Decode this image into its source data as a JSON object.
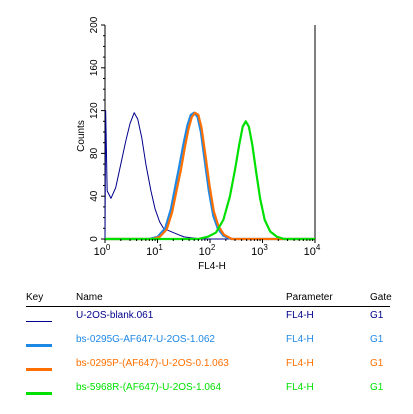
{
  "chart_data": {
    "type": "line",
    "title": "",
    "xlabel": "FL4-H",
    "ylabel": "Counts",
    "x_scale": "log",
    "xlim": [
      1,
      10000
    ],
    "ylim": [
      0,
      200
    ],
    "x_ticks": [
      {
        "value": 1,
        "base": "10",
        "exp": "0"
      },
      {
        "value": 10,
        "base": "10",
        "exp": "1"
      },
      {
        "value": 100,
        "base": "10",
        "exp": "2"
      },
      {
        "value": 1000,
        "base": "10",
        "exp": "3"
      },
      {
        "value": 10000,
        "base": "10",
        "exp": "4"
      }
    ],
    "y_ticks": [
      "0",
      "40",
      "80",
      "120",
      "160",
      "200"
    ],
    "grid": false,
    "series": [
      {
        "name": "U-2OS-blank.061",
        "color": "#00008b",
        "points": [
          [
            1,
            0
          ],
          [
            1.03,
            120
          ],
          [
            1.1,
            45
          ],
          [
            1.3,
            38
          ],
          [
            1.6,
            48
          ],
          [
            2.0,
            70
          ],
          [
            2.5,
            92
          ],
          [
            3.0,
            108
          ],
          [
            3.6,
            118
          ],
          [
            4.2,
            112
          ],
          [
            5.0,
            95
          ],
          [
            6.0,
            70
          ],
          [
            7.5,
            45
          ],
          [
            9.0,
            28
          ],
          [
            11,
            16
          ],
          [
            13,
            10
          ],
          [
            16,
            8
          ],
          [
            20,
            6
          ],
          [
            25,
            4
          ],
          [
            32,
            2
          ],
          [
            45,
            1
          ],
          [
            70,
            0
          ],
          [
            10000,
            0
          ]
        ]
      },
      {
        "name": "bs-0295G-AF647-U-2OS-1.062",
        "color": "#1e88e5",
        "points": [
          [
            1,
            0
          ],
          [
            7,
            0
          ],
          [
            10,
            2
          ],
          [
            14,
            10
          ],
          [
            18,
            28
          ],
          [
            22,
            50
          ],
          [
            26,
            68
          ],
          [
            31,
            88
          ],
          [
            37,
            106
          ],
          [
            43,
            116
          ],
          [
            50,
            118
          ],
          [
            58,
            114
          ],
          [
            67,
            100
          ],
          [
            80,
            72
          ],
          [
            95,
            45
          ],
          [
            115,
            22
          ],
          [
            140,
            10
          ],
          [
            180,
            3
          ],
          [
            250,
            0
          ],
          [
            10000,
            0
          ]
        ]
      },
      {
        "name": "bs-0295P-(AF647)-U-2OS-0.1.063",
        "color": "#ff6f00",
        "points": [
          [
            1,
            0
          ],
          [
            8,
            0
          ],
          [
            11,
            2
          ],
          [
            15,
            9
          ],
          [
            19,
            25
          ],
          [
            23,
            45
          ],
          [
            28,
            65
          ],
          [
            33,
            85
          ],
          [
            39,
            103
          ],
          [
            45,
            114
          ],
          [
            52,
            118
          ],
          [
            60,
            116
          ],
          [
            69,
            104
          ],
          [
            82,
            78
          ],
          [
            98,
            50
          ],
          [
            118,
            26
          ],
          [
            145,
            12
          ],
          [
            185,
            4
          ],
          [
            260,
            0
          ],
          [
            10000,
            0
          ]
        ]
      },
      {
        "name": "bs-5968R-(AF647)-U-2OS-1.064",
        "color": "#00e000",
        "points": [
          [
            1,
            0
          ],
          [
            60,
            0
          ],
          [
            90,
            2
          ],
          [
            130,
            6
          ],
          [
            180,
            18
          ],
          [
            240,
            40
          ],
          [
            300,
            65
          ],
          [
            360,
            88
          ],
          [
            420,
            105
          ],
          [
            480,
            110
          ],
          [
            550,
            105
          ],
          [
            640,
            88
          ],
          [
            760,
            62
          ],
          [
            900,
            38
          ],
          [
            1100,
            18
          ],
          [
            1400,
            7
          ],
          [
            1900,
            2
          ],
          [
            2600,
            0
          ],
          [
            10000,
            0
          ]
        ]
      }
    ]
  },
  "legend": {
    "headers": {
      "key": "Key",
      "name": "Name",
      "parameter": "Parameter",
      "gate": "Gate"
    },
    "rows": [
      {
        "name": "U-2OS-blank.061",
        "parameter": "FL4-H",
        "gate": "G1",
        "color": "#00008b"
      },
      {
        "name": "bs-0295G-AF647-U-2OS-1.062",
        "parameter": "FL4-H",
        "gate": "G1",
        "color": "#1e88e5"
      },
      {
        "name": "bs-0295P-(AF647)-U-2OS-0.1.063",
        "parameter": "FL4-H",
        "gate": "G1",
        "color": "#ff6f00"
      },
      {
        "name": "bs-5968R-(AF647)-U-2OS-1.064",
        "parameter": "FL4-H",
        "gate": "G1",
        "color": "#00e000"
      }
    ]
  }
}
